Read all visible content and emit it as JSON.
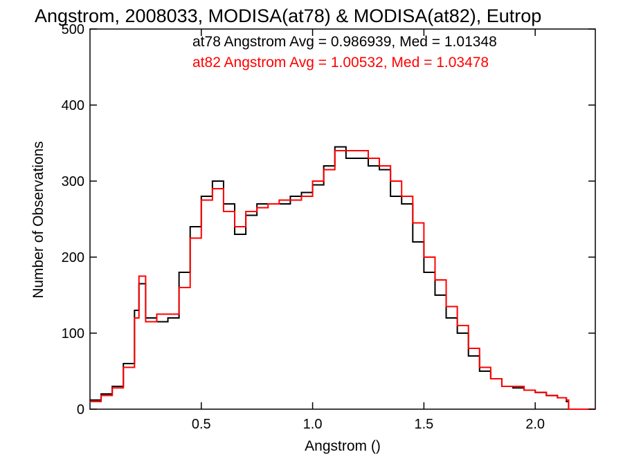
{
  "chart_data": {
    "type": "line",
    "title": "Angstrom, 2008033, MODISA(at78) & MODISA(at82), Eutrop",
    "xlabel": "Angstrom ()",
    "ylabel": "Number of Observations",
    "xlim": [
      0.0,
      2.27
    ],
    "ylim": [
      0,
      500
    ],
    "xticks": [
      0.5,
      1.0,
      1.5,
      2.0
    ],
    "xtick_labels": [
      "0.5",
      "1.0",
      "1.5",
      "2.0"
    ],
    "yticks": [
      0,
      100,
      200,
      300,
      400,
      500
    ],
    "ytick_labels": [
      "0",
      "100",
      "200",
      "300",
      "400",
      "500"
    ],
    "grid": false,
    "legend_position": "top-right",
    "style": "step histogram",
    "series": [
      {
        "name": "at78",
        "legend": "at78 Angstrom Avg = 0.986939, Med = 1.01348",
        "color": "#000000",
        "x": [
          0.0,
          0.05,
          0.1,
          0.15,
          0.2,
          0.22,
          0.25,
          0.3,
          0.35,
          0.4,
          0.45,
          0.5,
          0.55,
          0.6,
          0.65,
          0.7,
          0.75,
          0.8,
          0.85,
          0.9,
          0.95,
          1.0,
          1.05,
          1.1,
          1.15,
          1.2,
          1.25,
          1.3,
          1.35,
          1.4,
          1.45,
          1.5,
          1.55,
          1.6,
          1.65,
          1.7,
          1.75,
          1.8,
          1.85,
          1.9,
          1.95,
          2.0,
          2.05,
          2.1,
          2.14,
          2.15,
          2.2,
          2.27
        ],
        "y": [
          12,
          20,
          30,
          60,
          130,
          165,
          120,
          115,
          120,
          180,
          240,
          280,
          300,
          270,
          230,
          255,
          270,
          270,
          270,
          280,
          285,
          295,
          320,
          345,
          330,
          330,
          320,
          315,
          280,
          270,
          220,
          180,
          150,
          120,
          100,
          70,
          50,
          40,
          30,
          28,
          25,
          22,
          18,
          15,
          10,
          0,
          0,
          0
        ]
      },
      {
        "name": "at82",
        "legend": "at82 Angstrom Avg = 1.00532, Med = 1.03478",
        "color": "#ff0000",
        "x": [
          0.0,
          0.05,
          0.1,
          0.15,
          0.2,
          0.22,
          0.25,
          0.3,
          0.35,
          0.4,
          0.45,
          0.5,
          0.55,
          0.6,
          0.65,
          0.7,
          0.75,
          0.8,
          0.85,
          0.9,
          0.95,
          1.0,
          1.05,
          1.1,
          1.15,
          1.2,
          1.25,
          1.3,
          1.35,
          1.4,
          1.45,
          1.5,
          1.55,
          1.6,
          1.65,
          1.7,
          1.75,
          1.8,
          1.85,
          1.9,
          1.95,
          2.0,
          2.05,
          2.1,
          2.14,
          2.15,
          2.2,
          2.27
        ],
        "y": [
          10,
          18,
          28,
          55,
          120,
          175,
          115,
          125,
          125,
          160,
          225,
          275,
          290,
          260,
          240,
          260,
          265,
          270,
          275,
          275,
          280,
          300,
          315,
          340,
          340,
          340,
          330,
          320,
          300,
          280,
          245,
          200,
          170,
          135,
          110,
          80,
          55,
          40,
          30,
          30,
          25,
          22,
          18,
          15,
          12,
          0,
          0,
          0
        ]
      }
    ]
  }
}
